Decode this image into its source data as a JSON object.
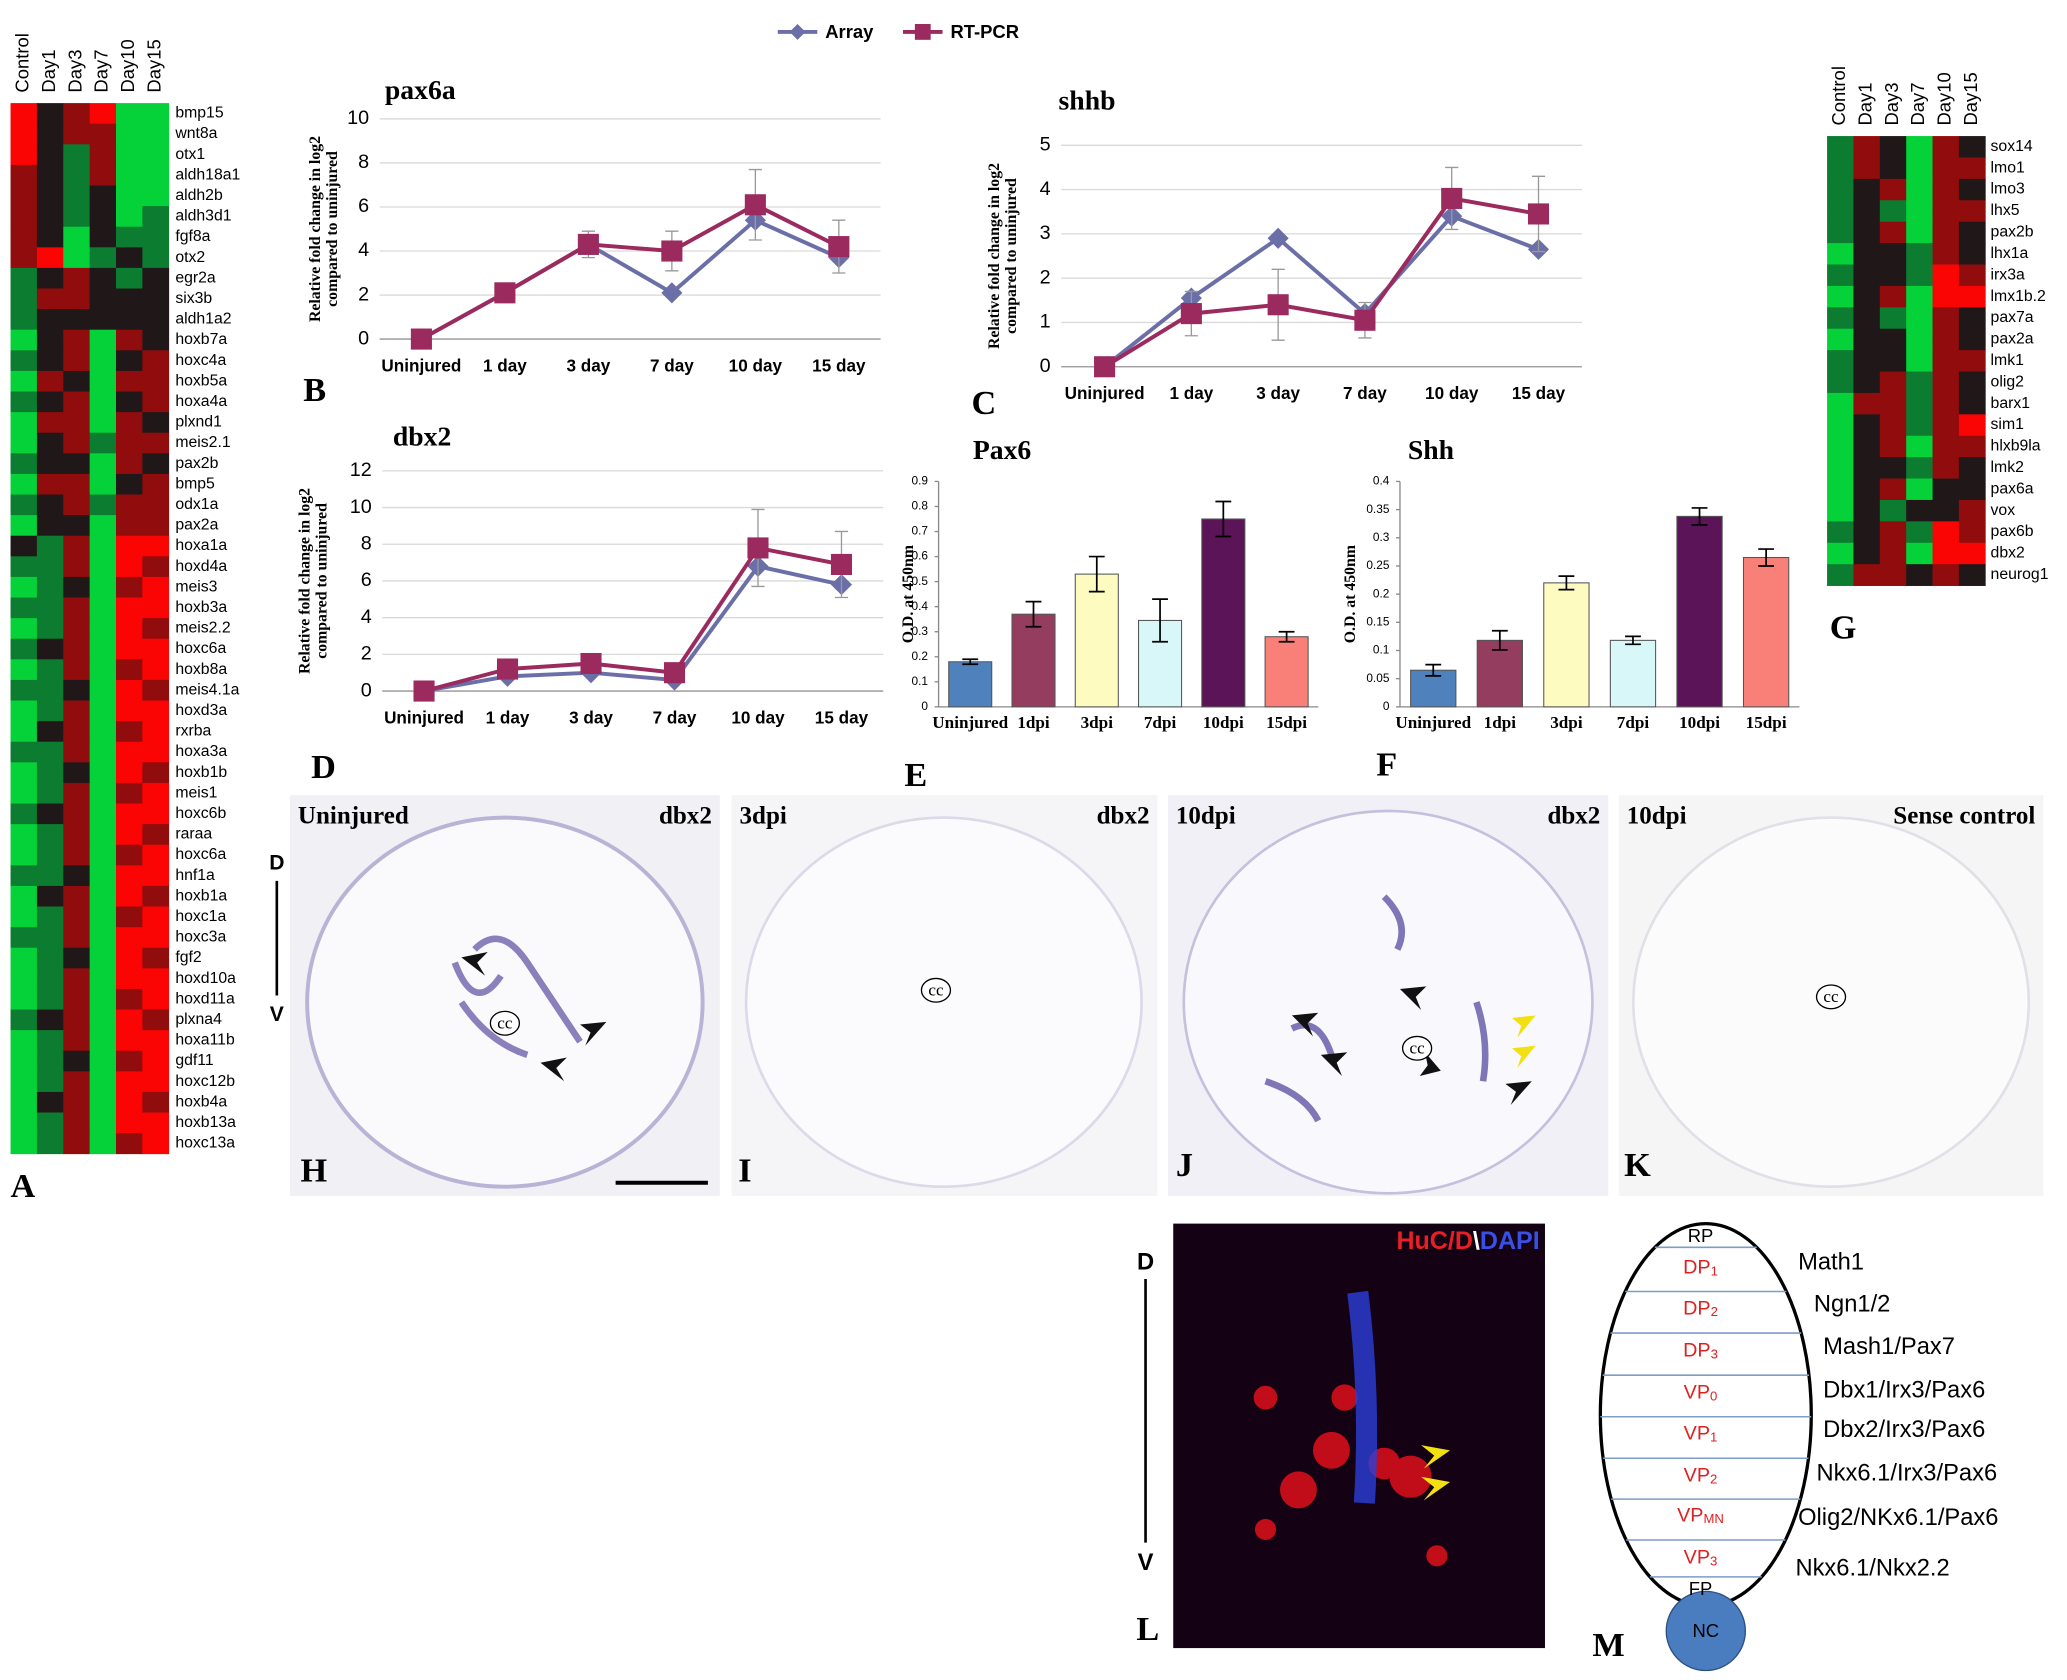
{
  "chart_data": [
    {
      "type": "line",
      "title": "pax6a",
      "ylabel": [
        "Relative fold change in log2",
        "compared to uninjured"
      ],
      "categories": [
        "Uninjured",
        "1 day",
        "3 day",
        "7 day",
        "10 day",
        "15 day"
      ],
      "series": [
        {
          "name": "Array",
          "color": "#6b6fa8",
          "marker": "diamond",
          "values": [
            0,
            2.1,
            4.3,
            2.1,
            5.4,
            3.7
          ]
        },
        {
          "name": "RT-PCR",
          "color": "#9b2a5f",
          "marker": "square",
          "values": [
            0,
            2.1,
            4.3,
            4.0,
            6.1,
            4.2
          ],
          "errors": [
            0,
            0,
            0.6,
            0.9,
            1.6,
            1.2
          ]
        }
      ],
      "ylim": [
        0,
        10
      ],
      "yticks": [
        0,
        2,
        4,
        6,
        8,
        10
      ],
      "grid": true
    },
    {
      "type": "line",
      "title": "shhb",
      "ylabel": [
        "Relative fold change in log2",
        "compared to uninjured"
      ],
      "categories": [
        "Uninjured",
        "1 day",
        "3 day",
        "7 day",
        "10 day",
        "15 day"
      ],
      "series": [
        {
          "name": "Array",
          "color": "#6b6fa8",
          "marker": "diamond",
          "values": [
            0,
            1.55,
            2.9,
            1.2,
            3.4,
            2.65
          ]
        },
        {
          "name": "RT-PCR",
          "color": "#9b2a5f",
          "marker": "square",
          "values": [
            0,
            1.2,
            1.4,
            1.05,
            3.8,
            3.45
          ],
          "errors": [
            0,
            0.5,
            0.8,
            0.4,
            0.7,
            0.85
          ]
        }
      ],
      "ylim": [
        0,
        5
      ],
      "yticks": [
        0,
        1,
        2,
        3,
        4,
        5
      ],
      "grid": true
    },
    {
      "type": "line",
      "title": "dbx2",
      "ylabel": [
        "Relative fold change in log2",
        "compared to uninjured"
      ],
      "categories": [
        "Uninjured",
        "1 day",
        "3 day",
        "7 day",
        "10 day",
        "15 day"
      ],
      "series": [
        {
          "name": "Array",
          "color": "#6b6fa8",
          "marker": "diamond",
          "values": [
            0,
            0.8,
            1.0,
            0.6,
            6.8,
            5.8
          ]
        },
        {
          "name": "RT-PCR",
          "color": "#9b2a5f",
          "marker": "square",
          "values": [
            0,
            1.2,
            1.5,
            1.0,
            7.8,
            6.9
          ],
          "errors": [
            0,
            0.2,
            0.2,
            0.2,
            2.1,
            1.8
          ]
        }
      ],
      "ylim": [
        0,
        12
      ],
      "yticks": [
        0,
        2,
        4,
        6,
        8,
        10,
        12
      ],
      "grid": true
    },
    {
      "type": "bar",
      "title": "Pax6",
      "ylabel": [
        "O.D. at 450nm"
      ],
      "categories": [
        "Uninjured",
        "1dpi",
        "3dpi",
        "7dpi",
        "10dpi",
        "15dpi"
      ],
      "values": [
        0.18,
        0.37,
        0.53,
        0.345,
        0.75,
        0.28
      ],
      "errors": [
        0.01,
        0.05,
        0.07,
        0.085,
        0.07,
        0.02
      ],
      "colors": [
        "#4f81bd",
        "#943d5f",
        "#fdfbc0",
        "#d8f7f9",
        "#5c1458",
        "#f98079"
      ],
      "ylim": [
        0,
        0.9
      ],
      "yticks": [
        0,
        0.1,
        0.2,
        0.3,
        0.4,
        0.5,
        0.6,
        0.7,
        0.8,
        0.9
      ],
      "grid": false
    },
    {
      "type": "bar",
      "title": "Shh",
      "ylabel": [
        "O.D. at 450nm"
      ],
      "categories": [
        "Uninjured",
        "1dpi",
        "3dpi",
        "7dpi",
        "10dpi",
        "15dpi"
      ],
      "values": [
        0.065,
        0.118,
        0.22,
        0.118,
        0.338,
        0.265
      ],
      "errors": [
        0.01,
        0.017,
        0.012,
        0.007,
        0.015,
        0.015
      ],
      "colors": [
        "#4f81bd",
        "#943d5f",
        "#fdfbc0",
        "#d8f7f9",
        "#5c1458",
        "#f98079"
      ],
      "ylim": [
        0,
        0.4
      ],
      "yticks": [
        0,
        0.05,
        0.1,
        0.15,
        0.2,
        0.25,
        0.3,
        0.35,
        0.4
      ],
      "grid": false
    }
  ],
  "heatmaps": [
    {
      "columns": [
        "Control",
        "Day1",
        "Day3",
        "Day7",
        "Day10",
        "Day15"
      ],
      "genes": [
        "bmp15",
        "wnt8a",
        "otx1",
        "aldh18a1",
        "aldh2b",
        "aldh3d1",
        "fgf8a",
        "otx2",
        "egr2a",
        "six3b",
        "aldh1a2",
        "hoxb7a",
        "hoxc4a",
        "hoxb5a",
        "hoxa4a",
        "plxnd1",
        "meis2.1",
        "pax2b",
        "bmp5",
        "odx1a",
        "pax2a",
        "hoxa1a",
        "hoxd4a",
        "meis3",
        "hoxb3a",
        "meis2.2",
        "hoxc6a",
        "hoxb8a",
        "meis4.1a",
        "hoxd3a",
        "rxrba",
        "hoxa3a",
        "hoxb1b",
        "meis1",
        "hoxc6b",
        "raraa",
        "hoxc6a",
        "hnf1a",
        "hoxb1a",
        "hoxc1a",
        "hoxc3a",
        "fgf2",
        "hoxd10a",
        "hoxd11a",
        "plxna4",
        "hoxa11b",
        "gdf11",
        "hoxc12b",
        "hoxb4a",
        "hoxb13a",
        "hoxc13a"
      ],
      "values": [
        [
          2,
          0,
          1,
          2,
          -2,
          -2
        ],
        [
          2,
          0,
          1,
          1,
          -2,
          -2
        ],
        [
          2,
          0,
          -1,
          1,
          -2,
          -2
        ],
        [
          1,
          0,
          -1,
          1,
          -2,
          -2
        ],
        [
          1,
          0,
          -1,
          0,
          -2,
          -2
        ],
        [
          1,
          0,
          -1,
          0,
          -2,
          -1
        ],
        [
          1,
          0,
          -2,
          0,
          -1,
          -1
        ],
        [
          1,
          2,
          -2,
          -1,
          0,
          -1
        ],
        [
          -1,
          0,
          1,
          0,
          -1,
          0
        ],
        [
          -1,
          1,
          1,
          0,
          0,
          0
        ],
        [
          -1,
          0,
          0,
          0,
          0,
          0
        ],
        [
          -2,
          0,
          1,
          -2,
          1,
          0
        ],
        [
          -1,
          0,
          1,
          -2,
          0,
          1
        ],
        [
          -2,
          1,
          0,
          -2,
          1,
          1
        ],
        [
          -1,
          0,
          1,
          -2,
          0,
          1
        ],
        [
          -2,
          1,
          1,
          -2,
          1,
          0
        ],
        [
          -2,
          0,
          1,
          -1,
          1,
          1
        ],
        [
          -1,
          0,
          0,
          -2,
          1,
          0
        ],
        [
          -2,
          1,
          1,
          -2,
          0,
          1
        ],
        [
          -1,
          0,
          1,
          -1,
          1,
          1
        ],
        [
          -2,
          0,
          0,
          -2,
          1,
          1
        ],
        [
          0,
          -1,
          1,
          -2,
          2,
          2
        ],
        [
          -1,
          -1,
          1,
          -2,
          2,
          1
        ],
        [
          -2,
          -1,
          0,
          -2,
          1,
          2
        ],
        [
          -1,
          -1,
          1,
          -2,
          2,
          2
        ],
        [
          -2,
          -1,
          1,
          -2,
          2,
          1
        ],
        [
          -1,
          0,
          1,
          -2,
          2,
          2
        ],
        [
          -2,
          -1,
          1,
          -2,
          1,
          2
        ],
        [
          -1,
          -1,
          0,
          -2,
          2,
          1
        ],
        [
          -2,
          -1,
          1,
          -2,
          2,
          2
        ],
        [
          -2,
          0,
          1,
          -2,
          1,
          2
        ],
        [
          -1,
          -1,
          1,
          -2,
          2,
          2
        ],
        [
          -2,
          -1,
          0,
          -2,
          2,
          1
        ],
        [
          -2,
          -1,
          1,
          -2,
          1,
          2
        ],
        [
          -1,
          0,
          1,
          -2,
          2,
          2
        ],
        [
          -2,
          -1,
          1,
          -2,
          2,
          1
        ],
        [
          -2,
          -1,
          1,
          -2,
          1,
          2
        ],
        [
          -1,
          -1,
          0,
          -2,
          2,
          2
        ],
        [
          -2,
          0,
          1,
          -2,
          2,
          1
        ],
        [
          -2,
          -1,
          1,
          -2,
          1,
          2
        ],
        [
          -1,
          -1,
          1,
          -2,
          2,
          2
        ],
        [
          -2,
          -1,
          0,
          -2,
          2,
          1
        ],
        [
          -2,
          -1,
          1,
          -2,
          2,
          2
        ],
        [
          -2,
          -1,
          1,
          -2,
          1,
          2
        ],
        [
          -1,
          0,
          1,
          -2,
          2,
          1
        ],
        [
          -2,
          -1,
          1,
          -2,
          2,
          2
        ],
        [
          -2,
          -1,
          0,
          -2,
          1,
          2
        ],
        [
          -2,
          -1,
          1,
          -2,
          2,
          2
        ],
        [
          -2,
          0,
          1,
          -2,
          2,
          1
        ],
        [
          -2,
          -1,
          1,
          -2,
          2,
          2
        ],
        [
          -2,
          -1,
          1,
          -2,
          1,
          2
        ]
      ]
    },
    {
      "columns": [
        "Control",
        "Day1",
        "Day3",
        "Day7",
        "Day10",
        "Day15"
      ],
      "genes": [
        "sox14",
        "lmo1",
        "lmo3",
        "lhx5",
        "pax2b",
        "lhx1a",
        "irx3a",
        "lmx1b.2",
        "pax7a",
        "pax2a",
        "lmk1",
        "olig2",
        "barx1",
        "sim1",
        "hlxb9la",
        "lmk2",
        "pax6a",
        "vox",
        "pax6b",
        "dbx2",
        "neurog1"
      ],
      "values": [
        [
          -1,
          1,
          0,
          -2,
          1,
          0
        ],
        [
          -1,
          1,
          0,
          -2,
          1,
          1
        ],
        [
          -1,
          0,
          1,
          -2,
          1,
          0
        ],
        [
          -1,
          0,
          -1,
          -2,
          1,
          1
        ],
        [
          -1,
          0,
          1,
          -2,
          1,
          0
        ],
        [
          -2,
          0,
          0,
          -1,
          1,
          0
        ],
        [
          -1,
          0,
          0,
          -1,
          2,
          1
        ],
        [
          -2,
          0,
          1,
          -2,
          2,
          2
        ],
        [
          -1,
          0,
          -1,
          -2,
          1,
          0
        ],
        [
          -2,
          0,
          0,
          -2,
          1,
          0
        ],
        [
          -1,
          0,
          0,
          -2,
          1,
          1
        ],
        [
          -1,
          0,
          1,
          -1,
          1,
          0
        ],
        [
          -2,
          1,
          1,
          -1,
          1,
          0
        ],
        [
          -2,
          0,
          1,
          -1,
          1,
          2
        ],
        [
          -2,
          0,
          1,
          -2,
          1,
          1
        ],
        [
          -2,
          0,
          0,
          -1,
          1,
          0
        ],
        [
          -2,
          0,
          1,
          -2,
          0,
          0
        ],
        [
          -2,
          0,
          -1,
          0,
          0,
          1
        ],
        [
          -1,
          0,
          1,
          -1,
          2,
          1
        ],
        [
          -2,
          0,
          1,
          -2,
          2,
          2
        ],
        [
          -1,
          1,
          1,
          0,
          1,
          0
        ]
      ]
    }
  ],
  "micrographs": [
    {
      "left": "Uninjured",
      "right": "dbx2",
      "cc": "cc"
    },
    {
      "left": "3dpi",
      "right": "dbx2",
      "cc": "cc"
    },
    {
      "left": "10dpi",
      "right": "dbx2",
      "cc": "cc"
    },
    {
      "left": "10dpi",
      "right": "Sense control",
      "cc": "cc"
    }
  ],
  "axis_marks": {
    "dorsal": "D",
    "ventral": "V"
  },
  "fluorescence": {
    "label_parts": [
      "HuC/D",
      "\\",
      "DAPI"
    ]
  },
  "diagram": {
    "zones": [
      {
        "main": "RP",
        "sub": ""
      },
      {
        "main": "DP",
        "sub": "1"
      },
      {
        "main": "DP",
        "sub": "2"
      },
      {
        "main": "DP",
        "sub": "3"
      },
      {
        "main": "VP",
        "sub": "0"
      },
      {
        "main": "VP",
        "sub": "1"
      },
      {
        "main": "VP",
        "sub": "2"
      },
      {
        "main": "VP",
        "sub": "MN"
      },
      {
        "main": "VP",
        "sub": "3"
      },
      {
        "main": "FP",
        "sub": ""
      }
    ],
    "notochord": "NC",
    "markers": [
      "Math1",
      "Ngn1/2",
      "Mash1/Pax7",
      "Dbx1/Irx3/Pax6",
      "Dbx2/Irx3/Pax6",
      "Nkx6.1/Irx3/Pax6",
      "Olig2/NKx6.1/Pax6",
      "Nkx6.1/Nkx2.2"
    ]
  },
  "panel_labels": [
    "A",
    "B",
    "C",
    "D",
    "E",
    "F",
    "G",
    "H",
    "I",
    "J",
    "K",
    "L",
    "M"
  ]
}
